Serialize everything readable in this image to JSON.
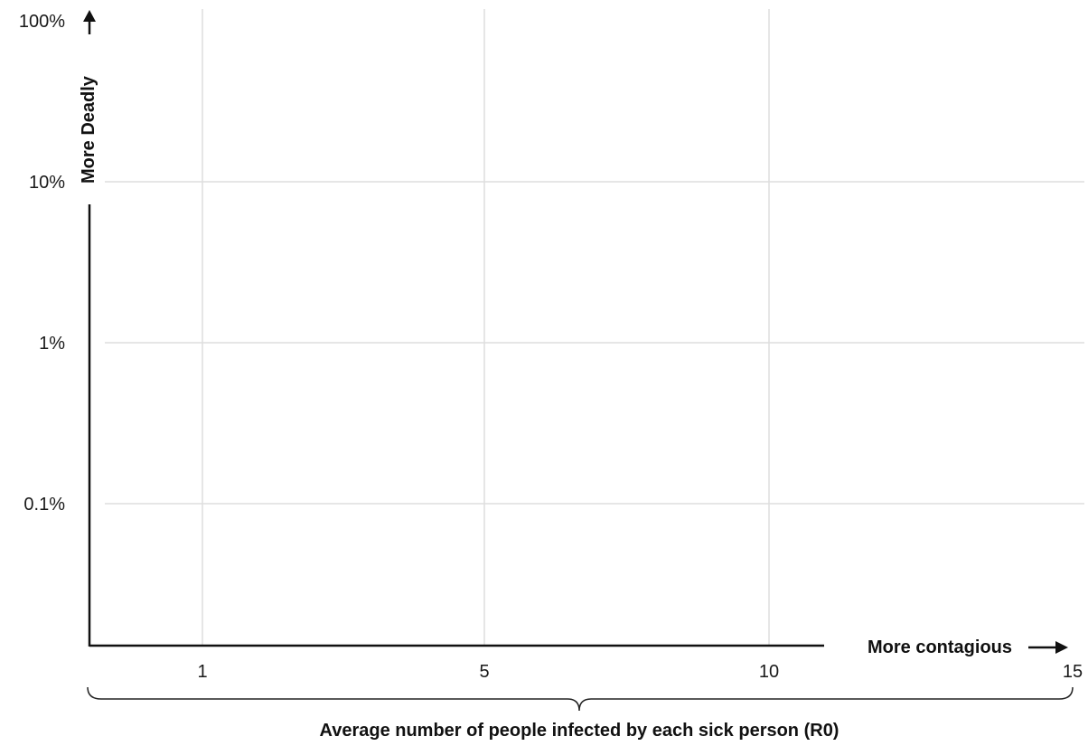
{
  "chart_data": {
    "type": "scatter",
    "title": "",
    "xlabel": "Average number of people infected by each sick person (R0)",
    "ylabel": "",
    "x_direction_label": "More contagious",
    "y_direction_label": "More Deadly",
    "x_ticks": [
      {
        "value": 1,
        "label": "1"
      },
      {
        "value": 5,
        "label": "5"
      },
      {
        "value": 10,
        "label": "10"
      },
      {
        "value": 15,
        "label": "15"
      }
    ],
    "y_ticks": [
      {
        "value": 100,
        "label": "100%"
      },
      {
        "value": 10,
        "label": "10%"
      },
      {
        "value": 1,
        "label": "1%"
      },
      {
        "value": 0.1,
        "label": "0.1%"
      }
    ],
    "y_scale": "log",
    "grid": true,
    "series": []
  }
}
